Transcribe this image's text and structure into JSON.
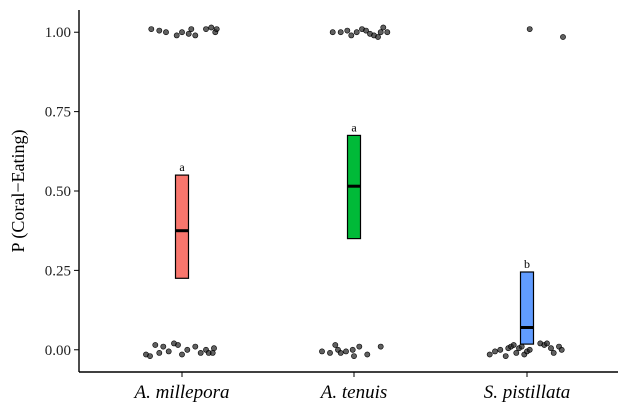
{
  "chart_data": {
    "type": "scatter",
    "title": "",
    "ylabel": "P (Coral−Eating)",
    "xlabel": "",
    "ylim": [
      -0.07,
      1.07
    ],
    "yticks": [
      0.0,
      0.25,
      0.5,
      0.75,
      1.0
    ],
    "ytick_labels": [
      "0.00",
      "0.25",
      "0.50",
      "0.75",
      "1.00"
    ],
    "categories": [
      "A. millepora",
      "A. tenuis",
      "S. pistillata"
    ],
    "grid": false,
    "legend": "none",
    "summaries": [
      {
        "category": "A. millepora",
        "mean": 0.375,
        "lower": 0.225,
        "upper": 0.55,
        "letter": "a",
        "color": "#f8766d"
      },
      {
        "category": "A. tenuis",
        "mean": 0.515,
        "lower": 0.35,
        "upper": 0.675,
        "letter": "a",
        "color": "#00ba38"
      },
      {
        "category": "S. pistillata",
        "mean": 0.07,
        "lower": 0.018,
        "upper": 0.245,
        "letter": "b",
        "color": "#619cff"
      }
    ],
    "points": [
      {
        "category": "A. millepora",
        "offsets": [
          -0.23,
          -0.17,
          -0.12,
          -0.04,
          0.0,
          0.05,
          0.07,
          0.1,
          0.18,
          0.22,
          0.25,
          0.26
        ],
        "values": [
          1.01,
          1.005,
          1.0,
          0.99,
          1.0,
          0.995,
          1.01,
          0.99,
          1.01,
          1.015,
          1.0,
          1.01
        ],
        "label": "ones"
      },
      {
        "category": "A. millepora",
        "offsets": [
          -0.27,
          -0.24,
          -0.2,
          -0.17,
          -0.14,
          -0.1,
          -0.06,
          -0.03,
          0.0,
          0.04,
          0.1,
          0.14,
          0.18,
          0.2,
          0.23,
          0.24
        ],
        "values": [
          -0.015,
          -0.02,
          0.015,
          -0.01,
          0.01,
          -0.005,
          0.02,
          0.015,
          -0.015,
          0.0,
          0.01,
          -0.01,
          0.0,
          -0.01,
          -0.01,
          0.005
        ],
        "label": "zeros"
      },
      {
        "category": "A. tenuis",
        "offsets": [
          -0.16,
          -0.1,
          -0.05,
          -0.02,
          0.02,
          0.06,
          0.09,
          0.12,
          0.15,
          0.18,
          0.2,
          0.22,
          0.25
        ],
        "values": [
          1.0,
          1.0,
          1.005,
          0.99,
          1.0,
          1.01,
          1.005,
          0.995,
          0.99,
          0.985,
          1.0,
          1.015,
          1.0
        ],
        "label": "ones"
      },
      {
        "category": "A. tenuis",
        "offsets": [
          -0.24,
          -0.18,
          -0.14,
          -0.12,
          -0.1,
          -0.06,
          -0.01,
          0.0,
          0.04,
          0.1,
          0.2
        ],
        "values": [
          -0.005,
          -0.01,
          0.015,
          0.0,
          -0.01,
          -0.005,
          0.0,
          -0.02,
          0.01,
          -0.015,
          0.01
        ],
        "label": "zeros"
      },
      {
        "category": "S. pistillata",
        "offsets": [
          0.02,
          0.27
        ],
        "values": [
          1.01,
          0.985
        ],
        "label": "ones"
      },
      {
        "category": "S. pistillata",
        "offsets": [
          -0.28,
          -0.24,
          -0.2,
          -0.16,
          -0.14,
          -0.12,
          -0.1,
          -0.08,
          -0.06,
          -0.04,
          -0.02,
          0.0,
          0.02,
          0.1,
          0.13,
          0.15,
          0.18,
          0.2,
          0.24,
          0.26
        ],
        "values": [
          -0.015,
          -0.005,
          0.0,
          -0.02,
          0.005,
          0.01,
          0.015,
          -0.01,
          0.005,
          0.01,
          -0.015,
          -0.005,
          0.0,
          0.02,
          0.015,
          0.02,
          0.005,
          -0.01,
          0.01,
          0.0
        ],
        "label": "zeros"
      }
    ]
  }
}
